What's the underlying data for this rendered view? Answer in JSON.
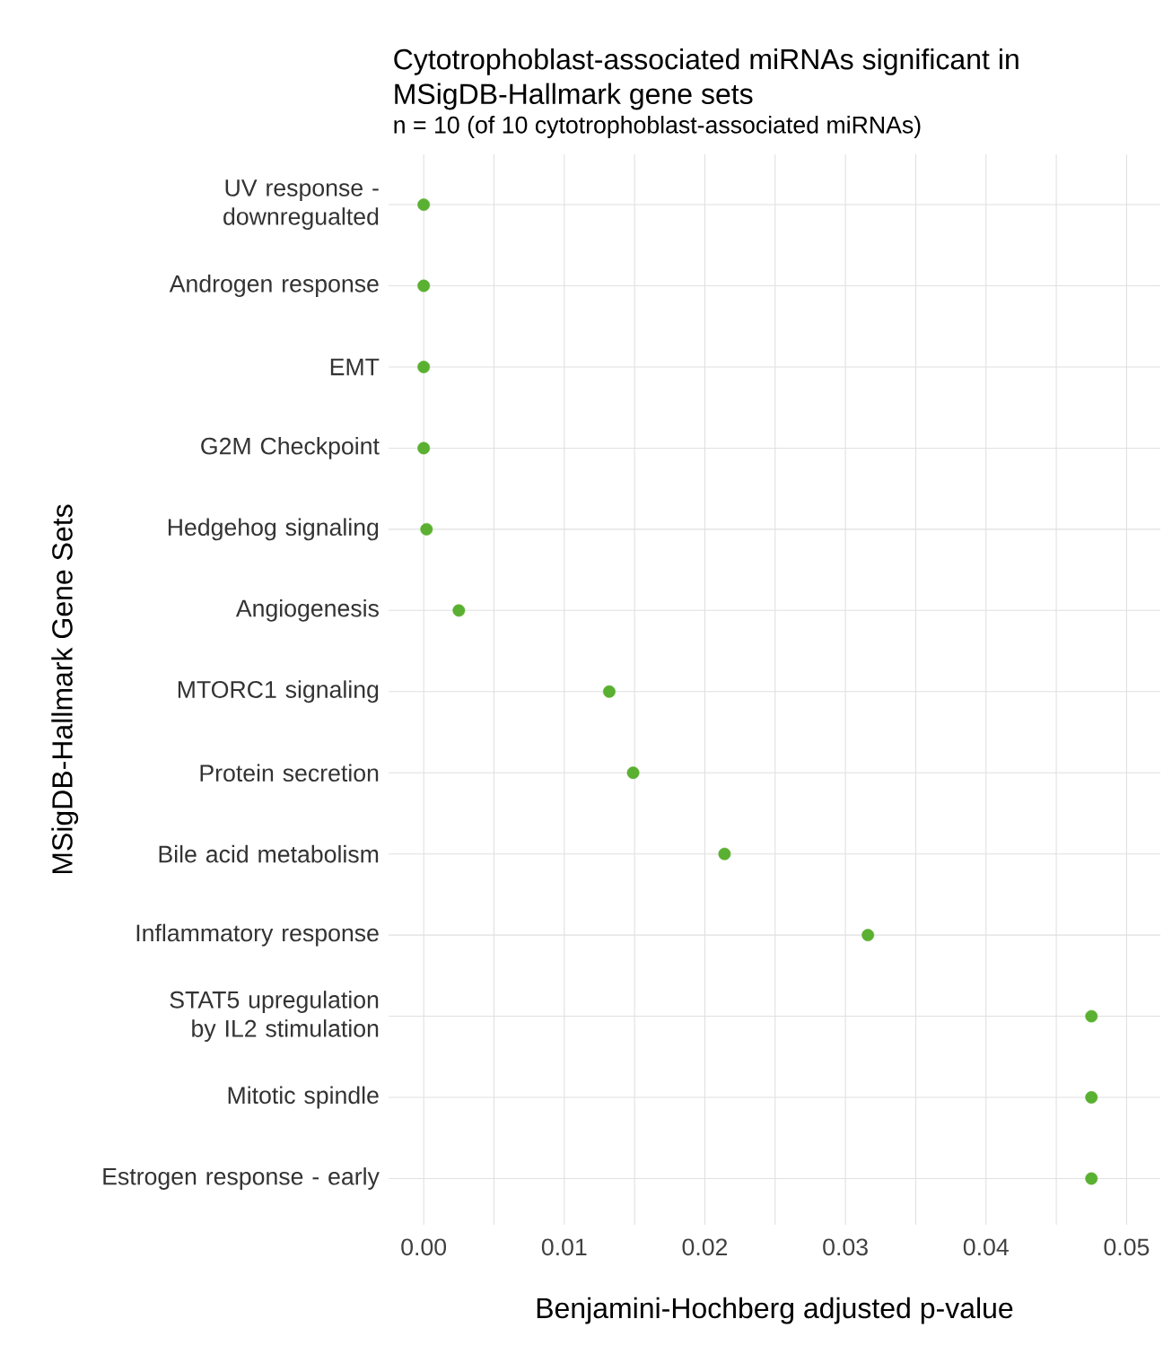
{
  "chart_data": {
    "type": "scatter",
    "orientation": "horizontal",
    "title": "Cytotrophoblast-associated miRNAs significant in MSigDB-Hallmark gene sets",
    "subtitle": "n = 10 (of 10 cytotrophoblast-associated miRNAs)",
    "xlabel": "Benjamini-Hochberg adjusted p-value",
    "ylabel": "MSigDB-Hallmark Gene Sets",
    "categories": [
      "UV response - downregualted",
      "Androgen response",
      "EMT",
      "G2M Checkpoint",
      "Hedgehog signaling",
      "Angiogenesis",
      "MTORC1 signaling",
      "Protein secretion",
      "Bile acid metabolism",
      "Inflammatory response",
      "STAT5 upregulation by IL2 stimulation",
      "Mitotic spindle",
      "Estrogen response - early"
    ],
    "values": [
      0.0,
      0.0,
      0.0,
      0.0,
      0.0002,
      0.0025,
      0.0132,
      0.0149,
      0.0214,
      0.0316,
      0.0475,
      0.0475,
      0.0475
    ],
    "color": "#5ab031",
    "marker": "circle",
    "xlim": [
      -0.0025,
      0.0524
    ],
    "xticks": [
      {
        "value": 0,
        "label": "0.00"
      },
      {
        "value": 0.01,
        "label": "0.01"
      },
      {
        "value": 0.02,
        "label": "0.02"
      },
      {
        "value": 0.03,
        "label": "0.03"
      },
      {
        "value": 0.04,
        "label": "0.04"
      },
      {
        "value": 0.05,
        "label": "0.05"
      }
    ],
    "grid": true
  }
}
